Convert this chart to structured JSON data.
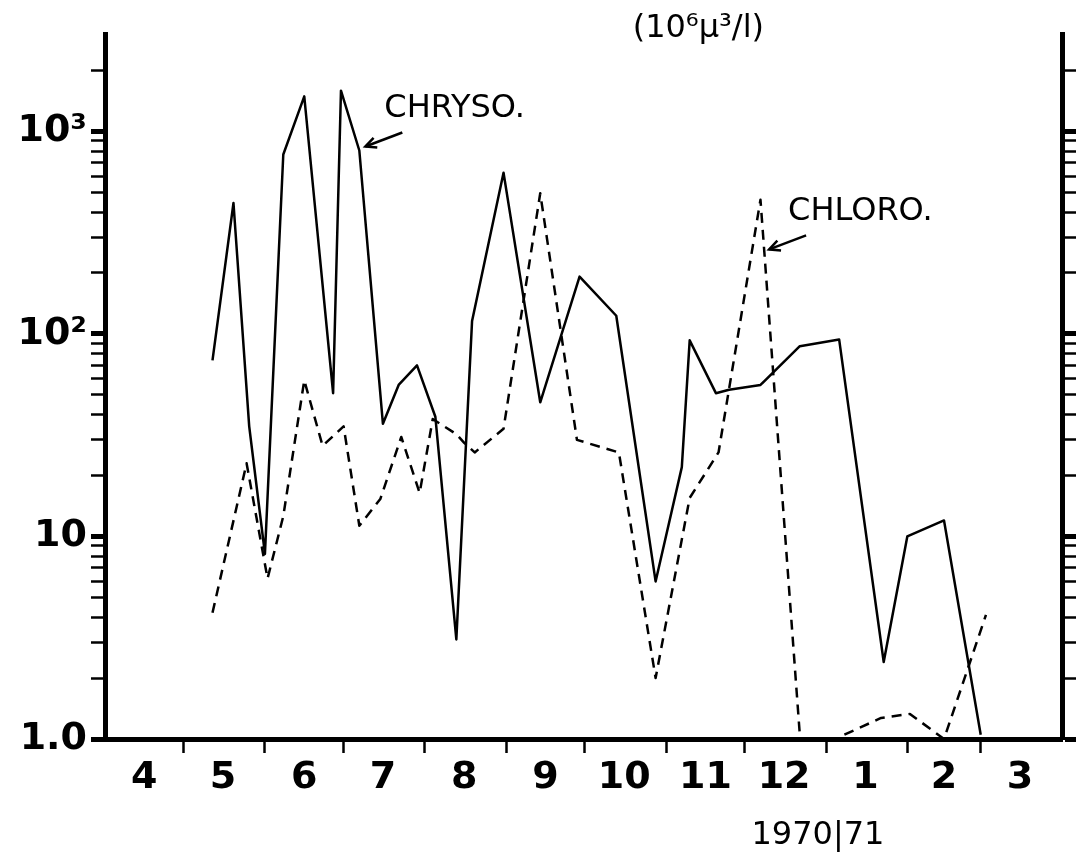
{
  "chart_data": {
    "type": "line",
    "ylabel": "(10⁶µ³/l)",
    "log": "y",
    "grid": false,
    "legend": false,
    "marker": "none",
    "xlim": [
      "1970-04-01",
      "1971-04-01"
    ],
    "xticks": [
      {
        "value": "1970-04-16",
        "label": "4"
      },
      {
        "value": "1970-05-01",
        "label": null
      },
      {
        "value": "1970-05-16",
        "label": "5"
      },
      {
        "value": "1970-06-01",
        "label": null
      },
      {
        "value": "1970-06-16",
        "label": "6"
      },
      {
        "value": "1970-07-01",
        "label": null
      },
      {
        "value": "1970-07-16",
        "label": "7"
      },
      {
        "value": "1970-08-01",
        "label": null
      },
      {
        "value": "1970-08-16",
        "label": "8"
      },
      {
        "value": "1970-09-01",
        "label": null
      },
      {
        "value": "1970-09-16",
        "label": "9"
      },
      {
        "value": "1970-10-01",
        "label": null
      },
      {
        "value": "1970-10-16",
        "label": "10"
      },
      {
        "value": "1970-11-01",
        "label": null
      },
      {
        "value": "1970-11-16",
        "label": "11"
      },
      {
        "value": "1970-12-01",
        "label": null
      },
      {
        "value": "1970-12-16",
        "label": "12"
      },
      {
        "value": "1971-01-01",
        "label": null
      },
      {
        "value": "1971-01-16",
        "label": "1"
      },
      {
        "value": "1971-02-01",
        "label": null
      },
      {
        "value": "1971-02-15",
        "label": "2"
      },
      {
        "value": "1971-03-01",
        "label": null
      },
      {
        "value": "1971-03-16",
        "label": "3"
      }
    ],
    "ylim": [
      1,
      3000
    ],
    "yticks": [
      {
        "value": 1,
        "label": "1.0"
      },
      {
        "value": 2,
        "label": null
      },
      {
        "value": 3,
        "label": null
      },
      {
        "value": 4,
        "label": null
      },
      {
        "value": 5,
        "label": null
      },
      {
        "value": 6,
        "label": null
      },
      {
        "value": 7,
        "label": null
      },
      {
        "value": 8,
        "label": null
      },
      {
        "value": 9,
        "label": null
      },
      {
        "value": 10,
        "label": "10"
      },
      {
        "value": 20,
        "label": null
      },
      {
        "value": 30,
        "label": null
      },
      {
        "value": 40,
        "label": null
      },
      {
        "value": 50,
        "label": null
      },
      {
        "value": 60,
        "label": null
      },
      {
        "value": 70,
        "label": null
      },
      {
        "value": 80,
        "label": null
      },
      {
        "value": 90,
        "label": null
      },
      {
        "value": 100,
        "label": "10²"
      },
      {
        "value": 200,
        "label": null
      },
      {
        "value": 300,
        "label": null
      },
      {
        "value": 400,
        "label": null
      },
      {
        "value": 500,
        "label": null
      },
      {
        "value": 600,
        "label": null
      },
      {
        "value": 700,
        "label": null
      },
      {
        "value": 800,
        "label": null
      },
      {
        "value": 900,
        "label": null
      },
      {
        "value": 1000,
        "label": "10³"
      },
      {
        "value": 2000,
        "label": null
      }
    ],
    "series": [
      {
        "color": "#000000",
        "line_style": "solid",
        "x": [
          "1970-05-12",
          "1970-05-20",
          "1970-05-26",
          "1970-06-01",
          "1970-06-08",
          "1970-06-16",
          "1970-06-27",
          "1970-06-30",
          "1970-07-07",
          "1970-07-16",
          "1970-07-22",
          "1970-07-29",
          "1970-08-05",
          "1970-08-13",
          "1970-08-19",
          "1970-08-31",
          "1970-09-14",
          "1970-09-29",
          "1970-10-13",
          "1970-10-28",
          "1970-11-07",
          "1970-11-10",
          "1970-11-20",
          "1970-11-25",
          "1970-12-07",
          "1970-12-22",
          "1971-01-06",
          "1971-01-23",
          "1971-02-01",
          "1971-02-15",
          "1971-03-01"
        ],
        "values": [
          74,
          443,
          35,
          8.2,
          769,
          1490,
          51,
          1590,
          805,
          36,
          56,
          70,
          39,
          3.1,
          116,
          625,
          46,
          192,
          123,
          6,
          22,
          93,
          51,
          53,
          56,
          87,
          94,
          2.4,
          10,
          12,
          1.05
        ]
      },
      {
        "color": "#000000",
        "line_style": "dashed",
        "x": [
          "1970-05-12",
          "1970-05-25",
          "1970-06-02",
          "1970-06-08",
          "1970-06-16",
          "1970-06-23",
          "1970-07-01",
          "1970-07-07",
          "1970-07-15",
          "1970-07-23",
          "1970-07-30",
          "1970-08-04",
          "1970-08-13",
          "1970-08-16",
          "1970-08-20",
          "1970-08-31",
          "1970-09-14",
          "1970-09-28",
          "1970-10-14",
          "1970-10-28",
          "1970-11-10",
          "1970-11-21",
          "1970-12-07",
          "1970-12-22",
          "1970-12-31",
          "1971-01-08",
          "1971-01-22",
          "1971-02-02",
          "1971-02-15",
          "1971-03-03"
        ],
        "values": [
          4.2,
          23,
          6.2,
          12.6,
          59,
          28,
          35,
          11.3,
          15.3,
          31,
          16.4,
          38,
          32,
          29,
          26,
          34,
          495,
          30,
          26,
          2,
          15.5,
          26,
          460,
          1.05,
          null,
          1.05,
          1.27,
          1.33,
          1.0,
          4.1
        ]
      }
    ],
    "annotations": [
      {
        "text": "CHRYSO.",
        "x": "1970-07-07",
        "y": 805
      },
      {
        "text": "CHLORO.",
        "x": "1970-12-08",
        "y": 250
      },
      "1970|71"
    ]
  }
}
